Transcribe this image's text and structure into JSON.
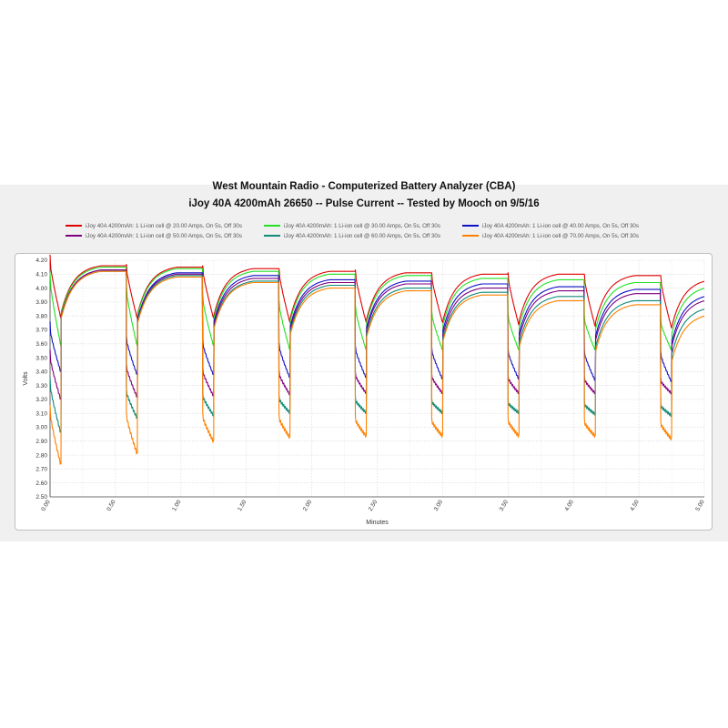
{
  "chart_data": {
    "type": "line",
    "title": "West Mountain Radio - Computerized Battery Analyzer (CBA)",
    "subtitle": "iJoy 40A 4200mAh 26650 -- Pulse Current -- Tested by Mooch on 9/5/16",
    "xlabel": "Minutes",
    "ylabel": "Volts",
    "xlim": [
      0,
      5.0
    ],
    "ylim": [
      2.5,
      4.2
    ],
    "xticks": [
      "0.00",
      "0.50",
      "1.00",
      "1.50",
      "2.00",
      "2.50",
      "3.00",
      "3.50",
      "4.00",
      "4.50",
      "5.00"
    ],
    "yticks": [
      "2.50",
      "2.60",
      "2.70",
      "2.80",
      "2.90",
      "3.00",
      "3.10",
      "3.20",
      "3.30",
      "3.40",
      "3.50",
      "3.60",
      "3.70",
      "3.80",
      "3.90",
      "4.00",
      "4.10",
      "4.20"
    ],
    "grid": true,
    "legend_position": "top",
    "pulse": {
      "on_seconds": 5,
      "off_seconds": 30
    },
    "series": [
      {
        "name": "iJoy 40A 4200mAh: 1 Li-ion cell @ 20.00 Amps, On 5s, Off 30s",
        "color": "#e00000",
        "pulse_start": [
          4.18,
          4.14,
          4.13,
          4.11,
          4.1,
          4.08,
          4.08,
          4.07,
          4.06
        ],
        "pulse_end": [
          3.78,
          3.78,
          3.78,
          3.75,
          3.75,
          3.75,
          3.73,
          3.72,
          3.71
        ],
        "rest_peak": [
          4.16,
          4.15,
          4.14,
          4.12,
          4.11,
          4.1,
          4.1,
          4.09,
          4.06
        ]
      },
      {
        "name": "iJoy 40A 4200mAh: 1 Li-ion cell @ 30.00 Amps, On 5s, Off 30s",
        "color": "#22e022",
        "pulse_start": [
          4.05,
          3.98,
          3.92,
          3.88,
          3.85,
          3.81,
          3.79,
          3.77,
          3.75
        ],
        "pulse_end": [
          3.58,
          3.58,
          3.58,
          3.55,
          3.55,
          3.55,
          3.55,
          3.55,
          3.55
        ],
        "rest_peak": [
          4.15,
          4.14,
          4.12,
          4.1,
          4.09,
          4.07,
          4.06,
          4.04,
          4.01
        ]
      },
      {
        "name": "iJoy 40A 4200mAh: 1 Li-ion cell @ 40.00 Amps, On 5s, Off 30s",
        "color": "#1010c8",
        "pulse_start": [
          3.7,
          3.63,
          3.6,
          3.58,
          3.56,
          3.55,
          3.54,
          3.53,
          3.52
        ],
        "pulse_end": [
          3.39,
          3.37,
          3.37,
          3.35,
          3.35,
          3.34,
          3.34,
          3.33,
          3.32
        ],
        "rest_peak": [
          4.13,
          4.11,
          4.09,
          4.06,
          4.05,
          4.03,
          4.01,
          3.99,
          3.95
        ]
      },
      {
        "name": "iJoy 40A 4200mAh: 1 Li-ion cell @ 50.00 Amps, On 5s, Off 30s",
        "color": "#800080",
        "pulse_start": [
          3.5,
          3.43,
          3.4,
          3.38,
          3.37,
          3.36,
          3.35,
          3.34,
          3.33
        ],
        "pulse_end": [
          3.19,
          3.21,
          3.22,
          3.23,
          3.24,
          3.24,
          3.24,
          3.24,
          3.24
        ],
        "rest_peak": [
          4.13,
          4.1,
          4.07,
          4.04,
          4.03,
          4.0,
          3.98,
          3.96,
          3.92
        ]
      },
      {
        "name": "iJoy 40A 4200mAh: 1 Li-ion cell @ 60.00 Amps, On 5s, Off 30s",
        "color": "#108a7a",
        "pulse_start": [
          3.3,
          3.25,
          3.22,
          3.2,
          3.19,
          3.18,
          3.17,
          3.16,
          3.15
        ],
        "pulse_end": [
          2.95,
          3.06,
          3.08,
          3.1,
          3.1,
          3.1,
          3.1,
          3.09,
          3.08
        ],
        "rest_peak": [
          4.12,
          4.09,
          4.05,
          4.02,
          4.0,
          3.97,
          3.94,
          3.91,
          3.86
        ]
      },
      {
        "name": "iJoy 40A 4200mAh: 1 Li-ion cell @ 70.00 Amps, On 5s, Off 30s",
        "color": "#ff8000",
        "pulse_start": [
          3.1,
          3.08,
          3.07,
          3.06,
          3.05,
          3.04,
          3.04,
          3.03,
          3.02
        ],
        "pulse_end": [
          2.72,
          2.8,
          2.89,
          2.92,
          2.93,
          2.93,
          2.93,
          2.93,
          2.91
        ],
        "rest_peak": [
          4.12,
          4.08,
          4.04,
          4.0,
          3.98,
          3.95,
          3.91,
          3.88,
          3.81
        ]
      }
    ]
  }
}
